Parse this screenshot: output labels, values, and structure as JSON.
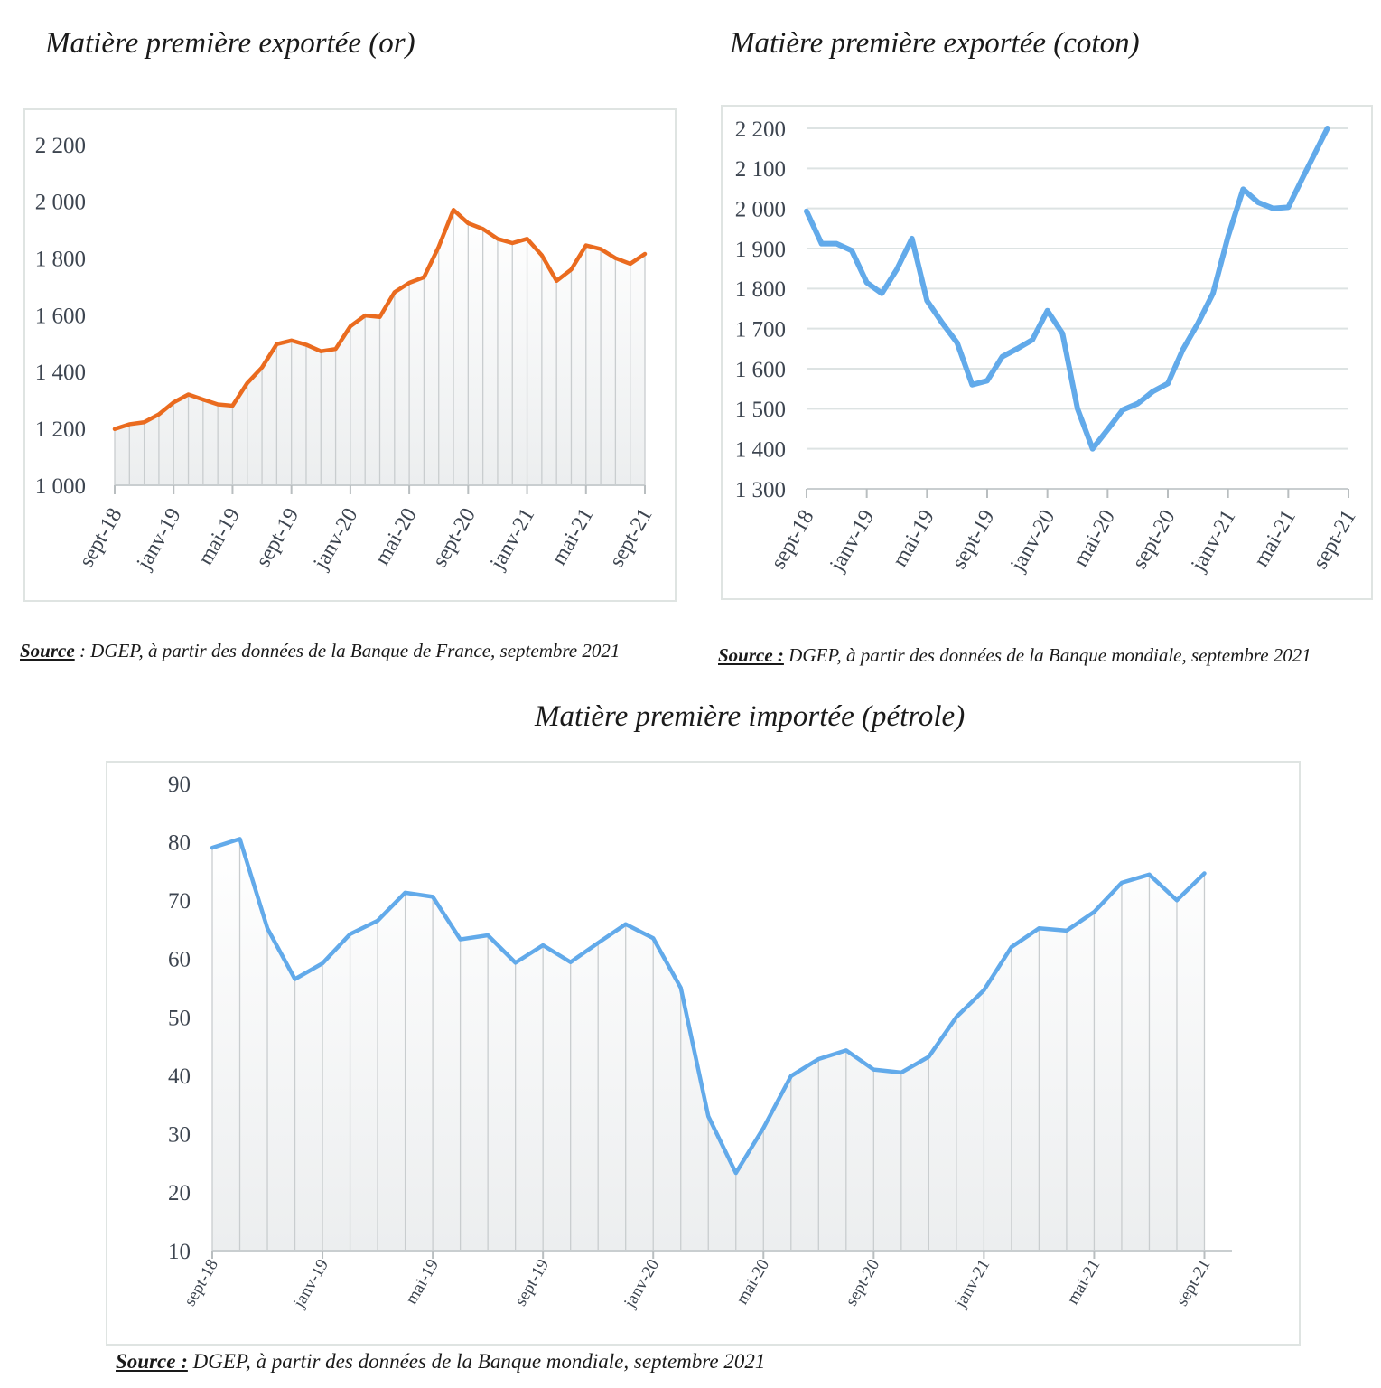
{
  "charts": {
    "gold": {
      "title": "Matière première exportée (or)",
      "source_label": "Source",
      "source_text": " : DGEP, à partir des données de la Banque de France, septembre 2021"
    },
    "cotton": {
      "title": "Matière première exportée (coton)",
      "source_label": "Source :",
      "source_text": " DGEP, à partir des données de la Banque mondiale, septembre 2021"
    },
    "oil": {
      "title": "Matière première importée (pétrole)",
      "source_label": "Source :",
      "source_text": " DGEP, à partir des données de la Banque mondiale, septembre 2021"
    }
  },
  "chart_data": [
    {
      "type": "area",
      "title": "Matière première exportée (or)",
      "color": "#ea6b1f",
      "ylim": [
        1000,
        2200
      ],
      "y_ticks": [
        "1 000",
        "1 200",
        "1 400",
        "1 600",
        "1 800",
        "2 000",
        "2 200"
      ],
      "y_tick_values": [
        1000,
        1200,
        1400,
        1600,
        1800,
        2000,
        2200
      ],
      "x_tick_labels": [
        "sept-18",
        "janv-19",
        "mai-19",
        "sept-19",
        "janv-20",
        "mai-20",
        "sept-20",
        "janv-21",
        "mai-21",
        "sept-21"
      ],
      "x_tick_indices": [
        0,
        8,
        16,
        24,
        32,
        40,
        48,
        56,
        64,
        72
      ],
      "x_period_count": 72,
      "points": [
        [
          0,
          1198
        ],
        [
          2,
          1215
        ],
        [
          4,
          1222
        ],
        [
          6,
          1250
        ],
        [
          8,
          1292
        ],
        [
          10,
          1320
        ],
        [
          12,
          1302
        ],
        [
          14,
          1285
        ],
        [
          16,
          1280
        ],
        [
          18,
          1360
        ],
        [
          20,
          1415
        ],
        [
          22,
          1497
        ],
        [
          24,
          1510
        ],
        [
          26,
          1495
        ],
        [
          28,
          1472
        ],
        [
          30,
          1480
        ],
        [
          32,
          1560
        ],
        [
          34,
          1598
        ],
        [
          36,
          1593
        ],
        [
          38,
          1680
        ],
        [
          40,
          1713
        ],
        [
          42,
          1733
        ],
        [
          44,
          1840
        ],
        [
          46,
          1970
        ],
        [
          48,
          1923
        ],
        [
          50,
          1903
        ],
        [
          52,
          1868
        ],
        [
          54,
          1853
        ],
        [
          56,
          1868
        ],
        [
          58,
          1810
        ],
        [
          60,
          1720
        ],
        [
          62,
          1760
        ],
        [
          64,
          1845
        ],
        [
          66,
          1832
        ],
        [
          68,
          1800
        ],
        [
          70,
          1780
        ],
        [
          72,
          1815
        ]
      ],
      "grid": false
    },
    {
      "type": "line",
      "title": "Matière première exportée (coton)",
      "color": "#62aaea",
      "ylim": [
        1300,
        2200
      ],
      "y_ticks": [
        "1 300",
        "1 400",
        "1 500",
        "1 600",
        "1 700",
        "1 800",
        "1 900",
        "2 000",
        "2 100",
        "2 200"
      ],
      "y_tick_values": [
        1300,
        1400,
        1500,
        1600,
        1700,
        1800,
        1900,
        2000,
        2100,
        2200
      ],
      "x_tick_labels": [
        "sept-18",
        "janv-19",
        "mai-19",
        "sept-19",
        "janv-20",
        "mai-20",
        "sept-20",
        "janv-21",
        "mai-21",
        "sept-21"
      ],
      "x_tick_indices": [
        0,
        4,
        8,
        12,
        16,
        20,
        24,
        28,
        32,
        36
      ],
      "x_period_count": 36,
      "points": [
        [
          0,
          1993
        ],
        [
          1,
          1912
        ],
        [
          2,
          1912
        ],
        [
          3,
          1895
        ],
        [
          4,
          1815
        ],
        [
          5,
          1788
        ],
        [
          6,
          1848
        ],
        [
          7,
          1925
        ],
        [
          8,
          1770
        ],
        [
          9,
          1715
        ],
        [
          10,
          1665
        ],
        [
          11,
          1560
        ],
        [
          12,
          1570
        ],
        [
          13,
          1630
        ],
        [
          14,
          1650
        ],
        [
          15,
          1672
        ],
        [
          16,
          1745
        ],
        [
          17,
          1688
        ],
        [
          18,
          1500
        ],
        [
          19,
          1400
        ],
        [
          20,
          1448
        ],
        [
          21,
          1497
        ],
        [
          22,
          1513
        ],
        [
          23,
          1543
        ],
        [
          24,
          1563
        ],
        [
          25,
          1648
        ],
        [
          26,
          1713
        ],
        [
          27,
          1788
        ],
        [
          28,
          1930
        ],
        [
          29,
          2048
        ],
        [
          30,
          2015
        ],
        [
          31,
          2000
        ],
        [
          32,
          2003
        ],
        [
          33,
          2080
        ],
        [
          34,
          2155
        ],
        [
          34.6,
          2200
        ]
      ],
      "grid": true
    },
    {
      "type": "area",
      "title": "Matière première importée (pétrole)",
      "color": "#62aaea",
      "ylim": [
        10,
        90
      ],
      "y_ticks": [
        "10",
        "20",
        "30",
        "40",
        "50",
        "60",
        "70",
        "80",
        "90"
      ],
      "y_tick_values": [
        10,
        20,
        30,
        40,
        50,
        60,
        70,
        80,
        90
      ],
      "x_tick_labels": [
        "sept-18",
        "janv-19",
        "mai-19",
        "sept-19",
        "janv-20",
        "mai-20",
        "sept-20",
        "janv-21",
        "mai-21",
        "sept-21"
      ],
      "x_tick_indices": [
        0,
        4,
        8,
        12,
        16,
        20,
        24,
        28,
        32,
        36
      ],
      "x_period_count": 37,
      "points": [
        [
          0,
          79
        ],
        [
          1,
          80.5
        ],
        [
          2,
          65.2
        ],
        [
          3,
          56.5
        ],
        [
          4,
          59.2
        ],
        [
          5,
          64.2
        ],
        [
          6,
          66.5
        ],
        [
          7,
          71.3
        ],
        [
          8,
          70.6
        ],
        [
          9,
          63.3
        ],
        [
          10,
          64
        ],
        [
          11,
          59.3
        ],
        [
          12,
          62.3
        ],
        [
          13,
          59.4
        ],
        [
          14,
          62.7
        ],
        [
          15,
          65.9
        ],
        [
          16,
          63.5
        ],
        [
          17,
          55
        ],
        [
          18,
          33
        ],
        [
          19,
          23.3
        ],
        [
          20,
          31
        ],
        [
          21,
          39.9
        ],
        [
          22,
          42.8
        ],
        [
          23,
          44.3
        ],
        [
          24,
          41
        ],
        [
          25,
          40.5
        ],
        [
          26,
          43.2
        ],
        [
          27,
          50
        ],
        [
          28,
          54.6
        ],
        [
          29,
          62
        ],
        [
          30,
          65.2
        ],
        [
          31,
          64.8
        ],
        [
          32,
          68
        ],
        [
          33,
          73
        ],
        [
          34,
          74.4
        ],
        [
          35,
          70
        ],
        [
          36,
          74.6
        ]
      ],
      "grid": false
    }
  ]
}
